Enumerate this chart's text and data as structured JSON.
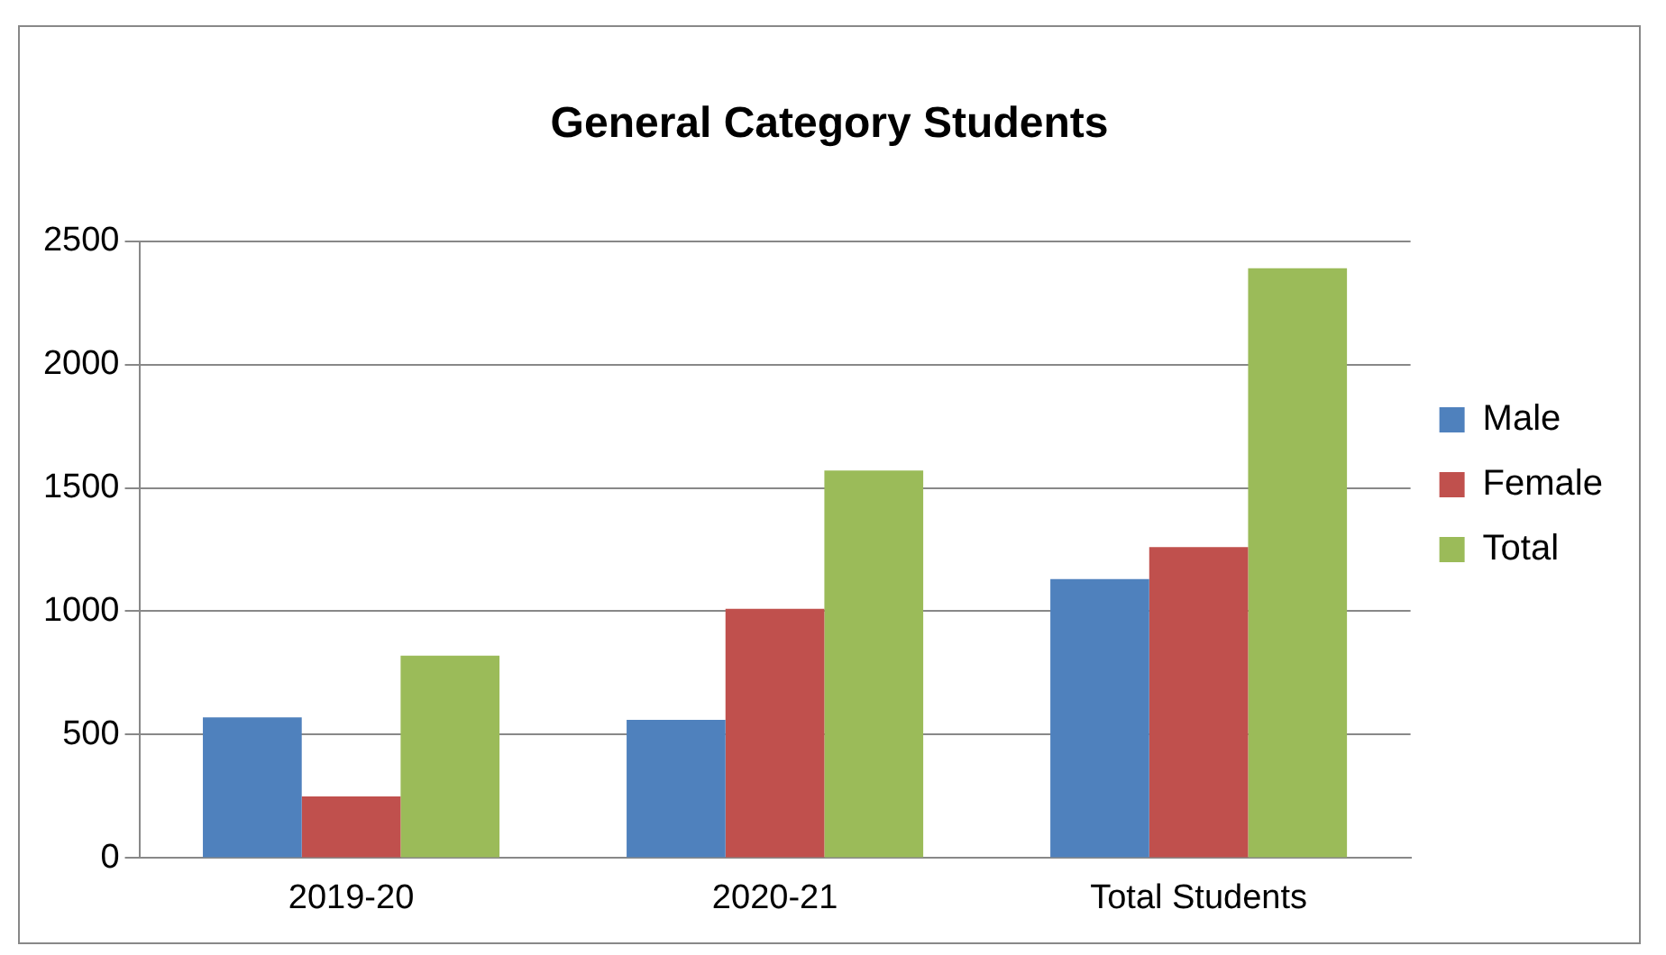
{
  "chart_data": {
    "type": "bar",
    "title": "General Category Students",
    "categories": [
      "2019-20",
      "2020-21",
      "Total Students"
    ],
    "series": [
      {
        "name": "Male",
        "color": "#4f81bd",
        "values": [
          570,
          560,
          1130
        ]
      },
      {
        "name": "Female",
        "color": "#c0504d",
        "values": [
          250,
          1010,
          1260
        ]
      },
      {
        "name": "Total",
        "color": "#9bbb59",
        "values": [
          820,
          1570,
          2390
        ]
      }
    ],
    "ylim": [
      0,
      2500
    ],
    "yticks": [
      0,
      500,
      1000,
      1500,
      2000,
      2500
    ],
    "grid": "y",
    "legend": "right"
  }
}
